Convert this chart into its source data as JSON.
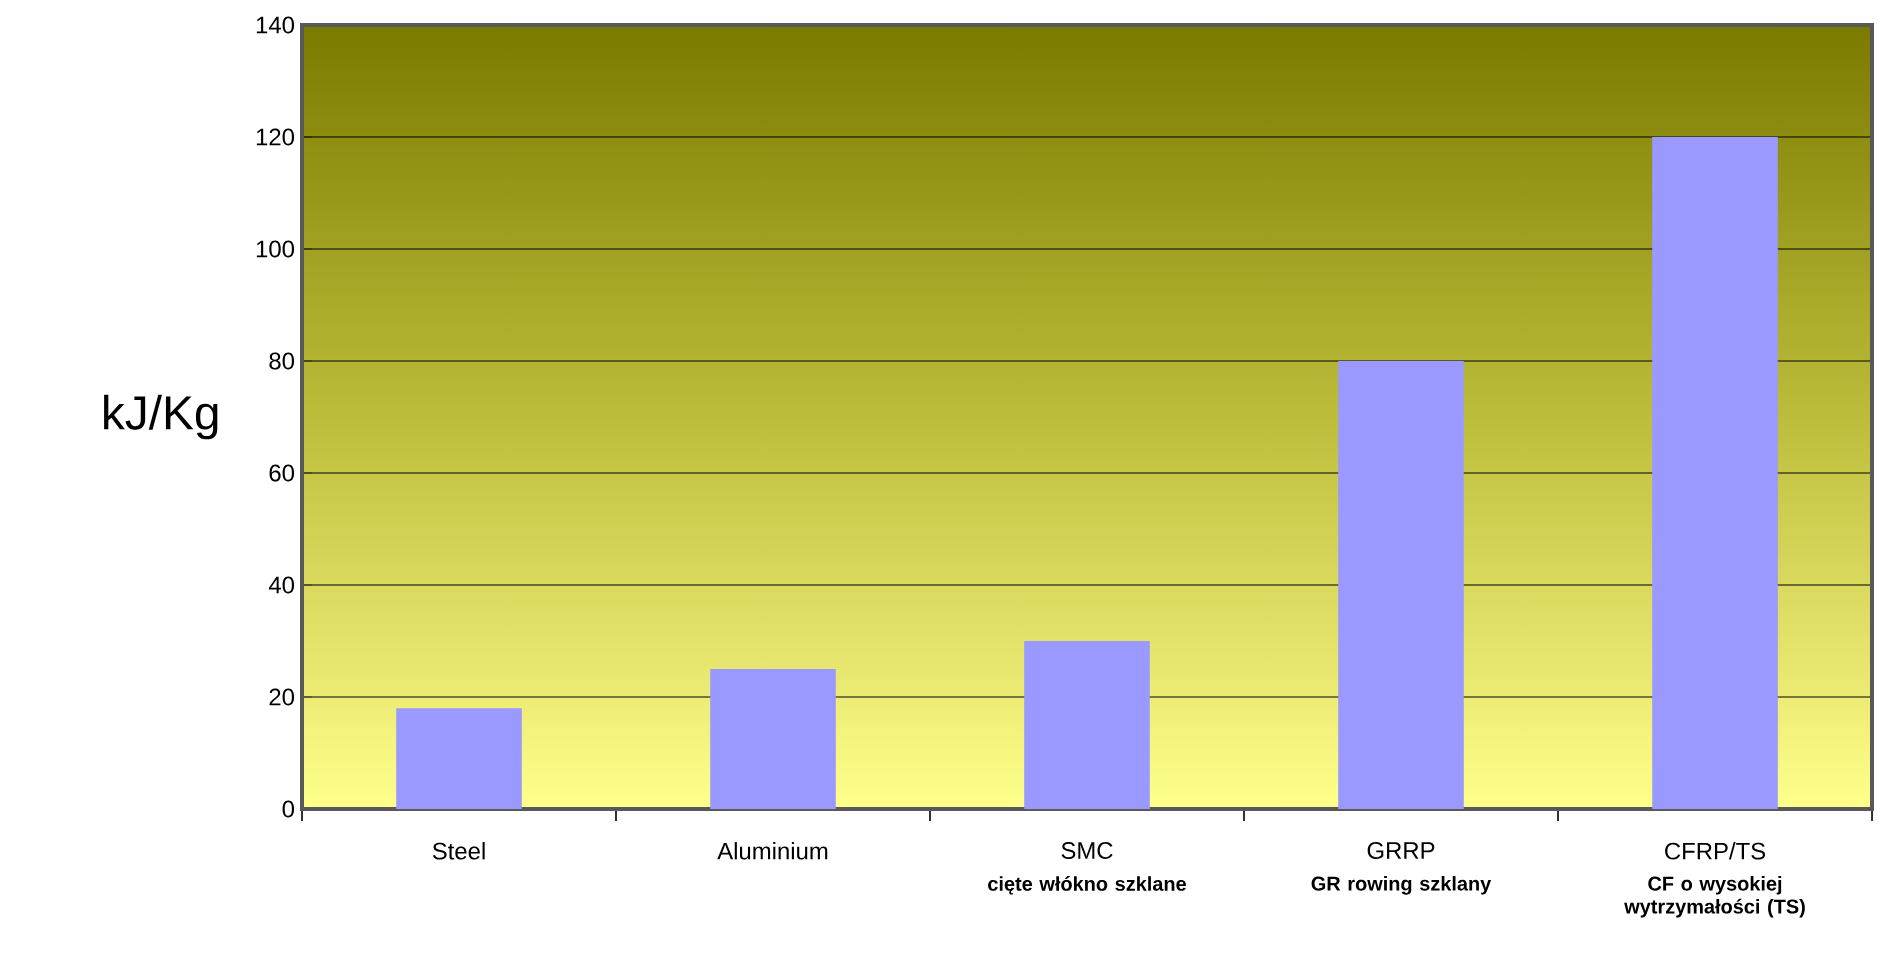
{
  "chart_data": {
    "type": "bar",
    "ylabel": "kJ/Kg",
    "categories": [
      "Steel",
      "Aluminium",
      "SMC",
      "GRRP",
      "CFRP/TS"
    ],
    "values": [
      18,
      25,
      30,
      80,
      120
    ],
    "color": "#9999ff",
    "ylim": [
      0,
      140
    ],
    "yticks": [
      0,
      20,
      40,
      60,
      80,
      100,
      120,
      140
    ],
    "grid": "y",
    "annotations": [
      "cięte włókno szklane",
      "GR rowing szklany",
      "CF o wysokiej wytrzymałości (TS)"
    ]
  }
}
